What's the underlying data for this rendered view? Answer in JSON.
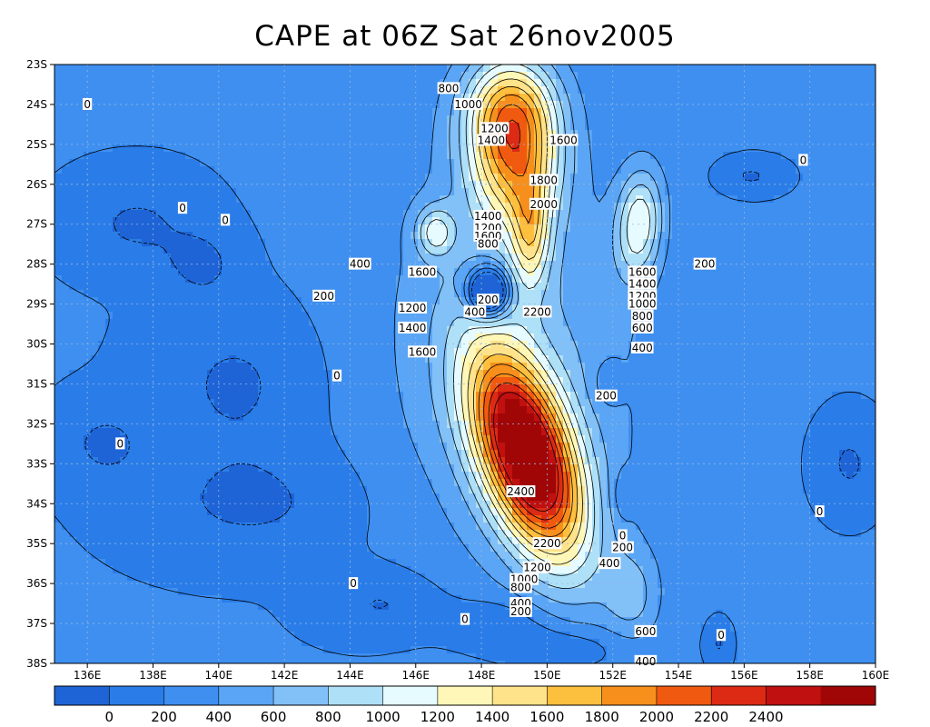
{
  "title": "CAPE at 06Z Sat 26nov2005",
  "chart_data": {
    "type": "heatmap",
    "title": "CAPE at 06Z Sat 26nov2005",
    "field": "CAPE",
    "xlim": [
      135,
      160
    ],
    "ylim": [
      -38,
      -23
    ],
    "x_tick_labels": [
      "136E",
      "138E",
      "140E",
      "142E",
      "144E",
      "146E",
      "148E",
      "150E",
      "152E",
      "154E",
      "156E",
      "158E",
      "160E"
    ],
    "y_tick_labels": [
      "23S",
      "24S",
      "25S",
      "26S",
      "27S",
      "28S",
      "29S",
      "30S",
      "31S",
      "32S",
      "33S",
      "34S",
      "35S",
      "36S",
      "37S",
      "38S"
    ],
    "grid": true,
    "colorbar": {
      "position": "bottom",
      "tick_labels": [
        "0",
        "200",
        "400",
        "600",
        "800",
        "1000",
        "1200",
        "1400",
        "1600",
        "1800",
        "2000",
        "2200",
        "2400"
      ],
      "colors": [
        "#1e64d6",
        "#2a7de8",
        "#3e8ff0",
        "#5aa5f5",
        "#82c0f8",
        "#aee0f8",
        "#e6fbff",
        "#fff7b8",
        "#ffe38a",
        "#fdbf3e",
        "#f78f1c",
        "#f05a10",
        "#dc2a14",
        "#c01010",
        "#a00606"
      ]
    },
    "contour_labels": [
      {
        "text": "800",
        "lon": 147.0,
        "lat": -23.6
      },
      {
        "text": "1000",
        "lon": 147.6,
        "lat": -24.0
      },
      {
        "text": "1200",
        "lon": 148.4,
        "lat": -24.6
      },
      {
        "text": "1400",
        "lon": 148.3,
        "lat": -24.9
      },
      {
        "text": "1600",
        "lon": 150.5,
        "lat": -24.9
      },
      {
        "text": "1800",
        "lon": 149.9,
        "lat": -25.9
      },
      {
        "text": "2000",
        "lon": 149.9,
        "lat": -26.5
      },
      {
        "text": "1400",
        "lon": 148.2,
        "lat": -26.8
      },
      {
        "text": "1200",
        "lon": 148.2,
        "lat": -27.1
      },
      {
        "text": "1600",
        "lon": 148.2,
        "lat": -27.3
      },
      {
        "text": "800",
        "lon": 148.2,
        "lat": -27.5
      },
      {
        "text": "1600",
        "lon": 146.2,
        "lat": -28.2
      },
      {
        "text": "1600",
        "lon": 152.9,
        "lat": -28.2
      },
      {
        "text": "1400",
        "lon": 152.9,
        "lat": -28.5
      },
      {
        "text": "1200",
        "lon": 152.9,
        "lat": -28.8
      },
      {
        "text": "1000",
        "lon": 152.9,
        "lat": -29.0
      },
      {
        "text": "800",
        "lon": 152.9,
        "lat": -29.3
      },
      {
        "text": "600",
        "lon": 152.9,
        "lat": -29.6
      },
      {
        "text": "400",
        "lon": 152.9,
        "lat": -30.1
      },
      {
        "text": "200",
        "lon": 148.2,
        "lat": -28.9
      },
      {
        "text": "400",
        "lon": 147.8,
        "lat": -29.2
      },
      {
        "text": "2200",
        "lon": 149.7,
        "lat": -29.2
      },
      {
        "text": "1200",
        "lon": 145.9,
        "lat": -29.1
      },
      {
        "text": "1400",
        "lon": 145.9,
        "lat": -29.6
      },
      {
        "text": "1600",
        "lon": 146.2,
        "lat": -30.2
      },
      {
        "text": "400",
        "lon": 144.3,
        "lat": -28.0
      },
      {
        "text": "200",
        "lon": 154.8,
        "lat": -28.0
      },
      {
        "text": "200",
        "lon": 143.2,
        "lat": -28.8
      },
      {
        "text": "200",
        "lon": 151.8,
        "lat": -31.3
      },
      {
        "text": "2400",
        "lon": 149.2,
        "lat": -33.7
      },
      {
        "text": "0",
        "lon": 140.2,
        "lat": -26.9
      },
      {
        "text": "0",
        "lon": 138.9,
        "lat": -26.6
      },
      {
        "text": "0",
        "lon": 136.0,
        "lat": -24.0
      },
      {
        "text": "0",
        "lon": 143.6,
        "lat": -30.8
      },
      {
        "text": "0",
        "lon": 137.0,
        "lat": -32.5
      },
      {
        "text": "0",
        "lon": 144.1,
        "lat": -36.0
      },
      {
        "text": "0",
        "lon": 147.5,
        "lat": -36.9
      },
      {
        "text": "0",
        "lon": 152.3,
        "lat": -34.8
      },
      {
        "text": "0",
        "lon": 155.3,
        "lat": -37.3
      },
      {
        "text": "0",
        "lon": 157.8,
        "lat": -25.4
      },
      {
        "text": "0",
        "lon": 158.3,
        "lat": -34.2
      },
      {
        "text": "2200",
        "lon": 150.0,
        "lat": -35.0
      },
      {
        "text": "1200",
        "lon": 149.7,
        "lat": -35.6
      },
      {
        "text": "1000",
        "lon": 149.3,
        "lat": -35.9
      },
      {
        "text": "800",
        "lon": 149.2,
        "lat": -36.1
      },
      {
        "text": "400",
        "lon": 149.2,
        "lat": -36.5
      },
      {
        "text": "200",
        "lon": 149.2,
        "lat": -36.7
      },
      {
        "text": "200",
        "lon": 152.3,
        "lat": -35.1
      },
      {
        "text": "400",
        "lon": 151.9,
        "lat": -35.5
      },
      {
        "text": "600",
        "lon": 153.0,
        "lat": -37.2
      },
      {
        "text": "400",
        "lon": 153.0,
        "lat": -37.95
      }
    ],
    "cape_blobs": [
      {
        "lon": 149.4,
        "lat": -32.8,
        "sx": 1.25,
        "sy": 2.6,
        "amp": 2600,
        "rot": -0.45
      },
      {
        "lon": 149.5,
        "lat": -27.3,
        "sx": 0.55,
        "sy": 1.3,
        "amp": 800,
        "rot": 0
      },
      {
        "lon": 149.0,
        "lat": -25.2,
        "sx": 1.3,
        "sy": 1.8,
        "amp": 1500,
        "rot": 0
      },
      {
        "lon": 152.8,
        "lat": -27.0,
        "sx": 0.65,
        "sy": 1.3,
        "amp": 900,
        "rot": 0.1
      },
      {
        "lon": 146.6,
        "lat": -27.2,
        "sx": 0.55,
        "sy": 0.6,
        "amp": 700,
        "rot": 0
      },
      {
        "lon": 148.8,
        "lat": -24.0,
        "sx": 1.3,
        "sy": 1.2,
        "amp": 700,
        "rot": 0
      },
      {
        "lon": 148.2,
        "lat": -28.7,
        "sx": 0.55,
        "sy": 0.55,
        "amp": -1600,
        "rot": 0
      },
      {
        "lon": 149.0,
        "lat": -30.5,
        "sx": 3.6,
        "sy": 5.0,
        "amp": 450,
        "rot": -0.2
      },
      {
        "lon": 152.6,
        "lat": -36.3,
        "sx": 0.8,
        "sy": 1.1,
        "amp": 400,
        "rot": 0
      },
      {
        "lon": 151.8,
        "lat": -31.0,
        "sx": 0.45,
        "sy": 0.6,
        "amp": -200,
        "rot": 0
      },
      {
        "lon": 148.5,
        "lat": -37.0,
        "sx": 1.5,
        "sy": 0.6,
        "amp": -250,
        "rot": 0
      }
    ],
    "base_value": 210,
    "low_zones": [
      {
        "lon": 137.5,
        "lat": -27.0,
        "sx": 2.2,
        "sy": 1.3
      },
      {
        "lon": 139.5,
        "lat": -28.0,
        "sx": 1.3,
        "sy": 1.0
      },
      {
        "lon": 140.5,
        "lat": -31.0,
        "sx": 2.8,
        "sy": 2.2
      },
      {
        "lon": 141.0,
        "lat": -34.0,
        "sx": 3.8,
        "sy": 1.6
      },
      {
        "lon": 136.5,
        "lat": -32.5,
        "sx": 1.6,
        "sy": 1.2
      },
      {
        "lon": 145.0,
        "lat": -36.5,
        "sx": 2.2,
        "sy": 1.0
      },
      {
        "lon": 150.5,
        "lat": -37.6,
        "sx": 2.2,
        "sy": 0.6
      },
      {
        "lon": 156.2,
        "lat": -25.8,
        "sx": 1.0,
        "sy": 0.45
      },
      {
        "lon": 159.2,
        "lat": -33.0,
        "sx": 1.0,
        "sy": 1.2
      },
      {
        "lon": 152.3,
        "lat": -33.8,
        "sx": 0.35,
        "sy": 0.7
      },
      {
        "lon": 155.2,
        "lat": -37.5,
        "sx": 0.4,
        "sy": 0.6
      }
    ]
  }
}
